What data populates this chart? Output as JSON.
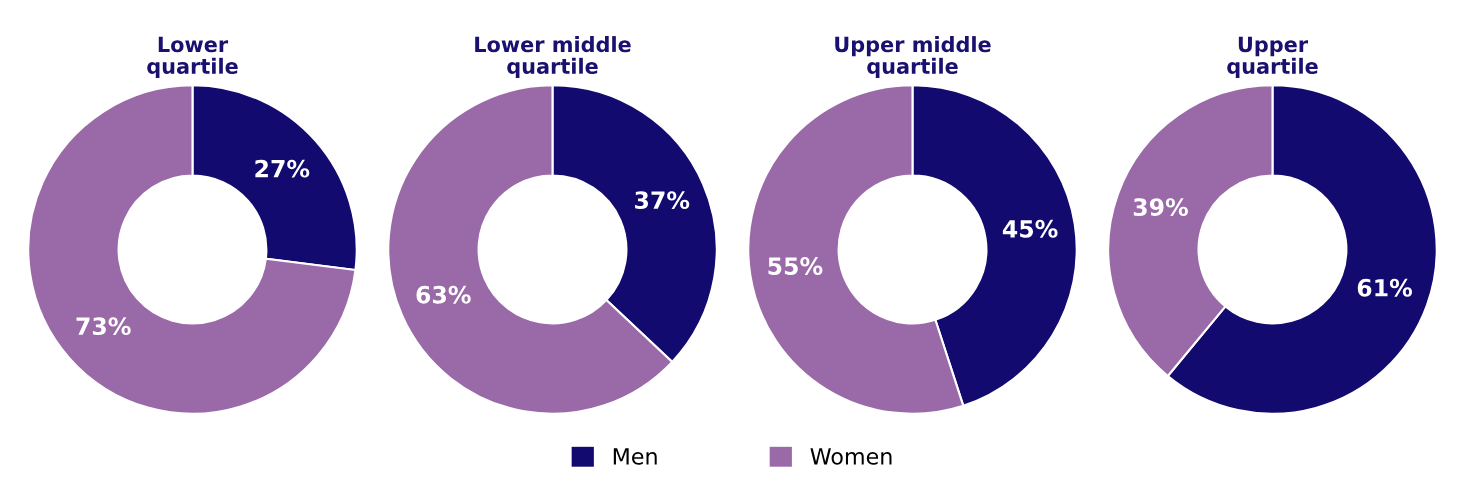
{
  "chart_data": [
    {
      "type": "donut",
      "title": "Lower\nquartile",
      "categories": [
        "Men",
        "Women"
      ],
      "values": [
        27,
        73
      ],
      "colors": [
        "#120a6e",
        "#9a6aa8"
      ],
      "value_labels": [
        "27%",
        "73%"
      ],
      "legend": "bottom"
    },
    {
      "type": "donut",
      "title": "Lower middle\nquartile",
      "categories": [
        null,
        null
      ],
      "values": [
        37,
        63
      ],
      "colors": [
        "#120a6e",
        "#9a6aa8"
      ],
      "value_labels": [
        "37%",
        "63%"
      ]
    },
    {
      "type": "donut",
      "title": "Upper middle\nquartile",
      "categories": [
        null,
        null
      ],
      "values": [
        45,
        55
      ],
      "colors": [
        "#120a6e",
        "#9a6aa8"
      ],
      "value_labels": [
        "45%",
        "55%"
      ]
    },
    {
      "type": "donut",
      "title": "Upper\nquartile",
      "categories": [
        null,
        null
      ],
      "values": [
        61,
        39
      ],
      "colors": [
        "#120a6e",
        "#9a6aa8"
      ],
      "value_labels": [
        "61%",
        "39%"
      ]
    }
  ]
}
